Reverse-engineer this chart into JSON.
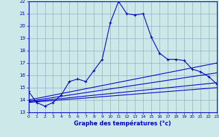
{
  "xlabel": "Graphe des températures (°c)",
  "xlim": [
    0,
    23
  ],
  "ylim": [
    13,
    22
  ],
  "yticks": [
    13,
    14,
    15,
    16,
    17,
    18,
    19,
    20,
    21,
    22
  ],
  "xticks": [
    0,
    1,
    2,
    3,
    4,
    5,
    6,
    7,
    8,
    9,
    10,
    11,
    12,
    13,
    14,
    15,
    16,
    17,
    18,
    19,
    20,
    21,
    22,
    23
  ],
  "background_color": "#cce8e8",
  "grid_color": "#99aacc",
  "line_color": "#0000cc",
  "markersize": 3,
  "linewidth": 0.8,
  "series": [
    {
      "x": [
        0,
        1,
        2,
        3,
        4,
        5,
        6,
        7,
        8,
        9,
        10,
        11,
        12,
        13,
        14,
        15,
        16,
        17,
        18,
        19,
        20,
        21,
        22,
        23
      ],
      "y": [
        14.7,
        13.8,
        13.5,
        13.8,
        14.4,
        15.5,
        15.7,
        15.5,
        16.4,
        17.3,
        20.3,
        22.0,
        21.0,
        20.9,
        21.0,
        19.1,
        17.8,
        17.3,
        17.3,
        17.2,
        16.5,
        16.3,
        15.9,
        15.3
      ],
      "marker": true
    },
    {
      "x": [
        0,
        23
      ],
      "y": [
        14.0,
        17.0
      ],
      "marker": true
    },
    {
      "x": [
        0,
        23
      ],
      "y": [
        13.9,
        16.2
      ],
      "marker": false
    },
    {
      "x": [
        0,
        23
      ],
      "y": [
        13.85,
        15.4
      ],
      "marker": false
    },
    {
      "x": [
        0,
        23
      ],
      "y": [
        13.8,
        15.0
      ],
      "marker": false
    }
  ]
}
